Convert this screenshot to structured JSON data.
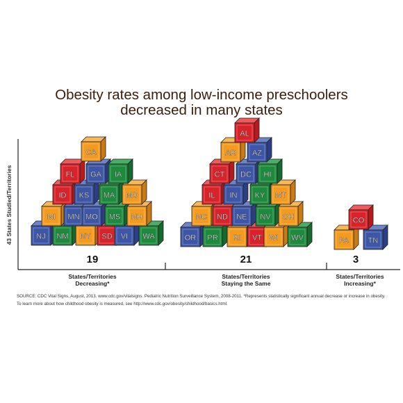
{
  "title_lines": [
    "Obesity rates among low-income preschoolers",
    "decreased in many states"
  ],
  "ylabel": "43 States Studied/Territories",
  "source_lines": [
    "SOURCE: CDC Vital Signs, August, 2013. www.cdc.gov/vitalsigns. Pediatric Nutrition Surveillance System, 2008-2011. *Represents statistically significant annual decrease or increase in obesity.",
    "To learn more about how childhood obesity is measured, see http://www.cdc.gov/obesity/childhood/basics.html."
  ],
  "colors": {
    "red": "#d9232a",
    "blue": "#3e56a7",
    "green": "#1e8a3e",
    "orange": "#f39a1f",
    "title": "#3a1d0c"
  },
  "chart_data": {
    "type": "pictograph",
    "xlabel": "",
    "ylabel": "43 States Studied/Territories",
    "categories": [
      {
        "label_lines": [
          "States/Territories",
          "Decreasing*"
        ],
        "count": 19,
        "states": [
          "NJ",
          "NM",
          "NY",
          "SD",
          "VI",
          "WA",
          "MI",
          "MN",
          "MO",
          "MS",
          "NH",
          "ID",
          "KS",
          "MA",
          "MD",
          "FL",
          "GA",
          "IA",
          "CA"
        ]
      },
      {
        "label_lines": [
          "States/Territories",
          "Staying the Same"
        ],
        "count": 21,
        "states": [
          "OR",
          "PR",
          "RI",
          "VT",
          "WI",
          "WV",
          "NC",
          "ND",
          "NE",
          "NV",
          "OH",
          "IL",
          "IN",
          "KY",
          "MT",
          "CT",
          "DC",
          "HI",
          "AR",
          "AZ",
          "AL"
        ]
      },
      {
        "label_lines": [
          "States/Territories",
          "Increasing*"
        ],
        "count": 3,
        "states": [
          "PA",
          "TN",
          "CO"
        ]
      }
    ]
  }
}
